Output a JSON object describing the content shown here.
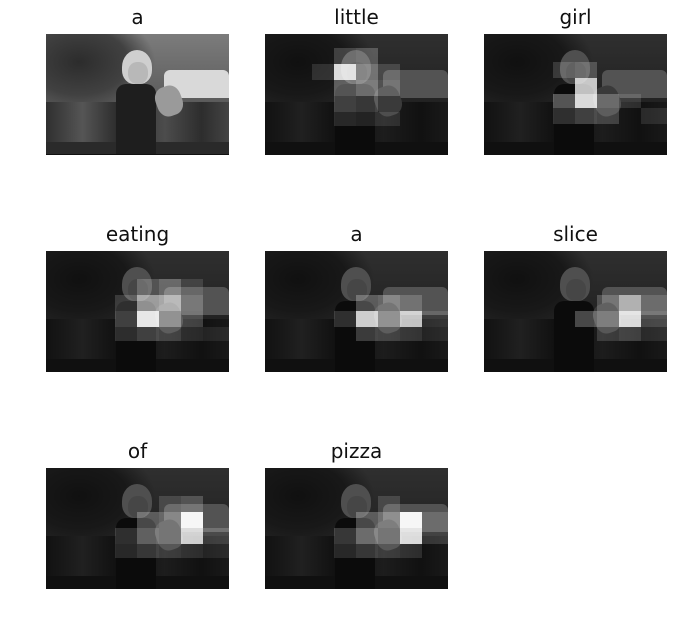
{
  "panels": [
    {
      "caption": "a",
      "attention": false
    },
    {
      "caption": "little",
      "attention": true
    },
    {
      "caption": "girl",
      "attention": true
    },
    {
      "caption": "eating",
      "attention": true
    },
    {
      "caption": "a",
      "attention": true
    },
    {
      "caption": "slice",
      "attention": true
    },
    {
      "caption": "of",
      "attention": true
    },
    {
      "caption": "pizza",
      "attention": true
    }
  ]
}
